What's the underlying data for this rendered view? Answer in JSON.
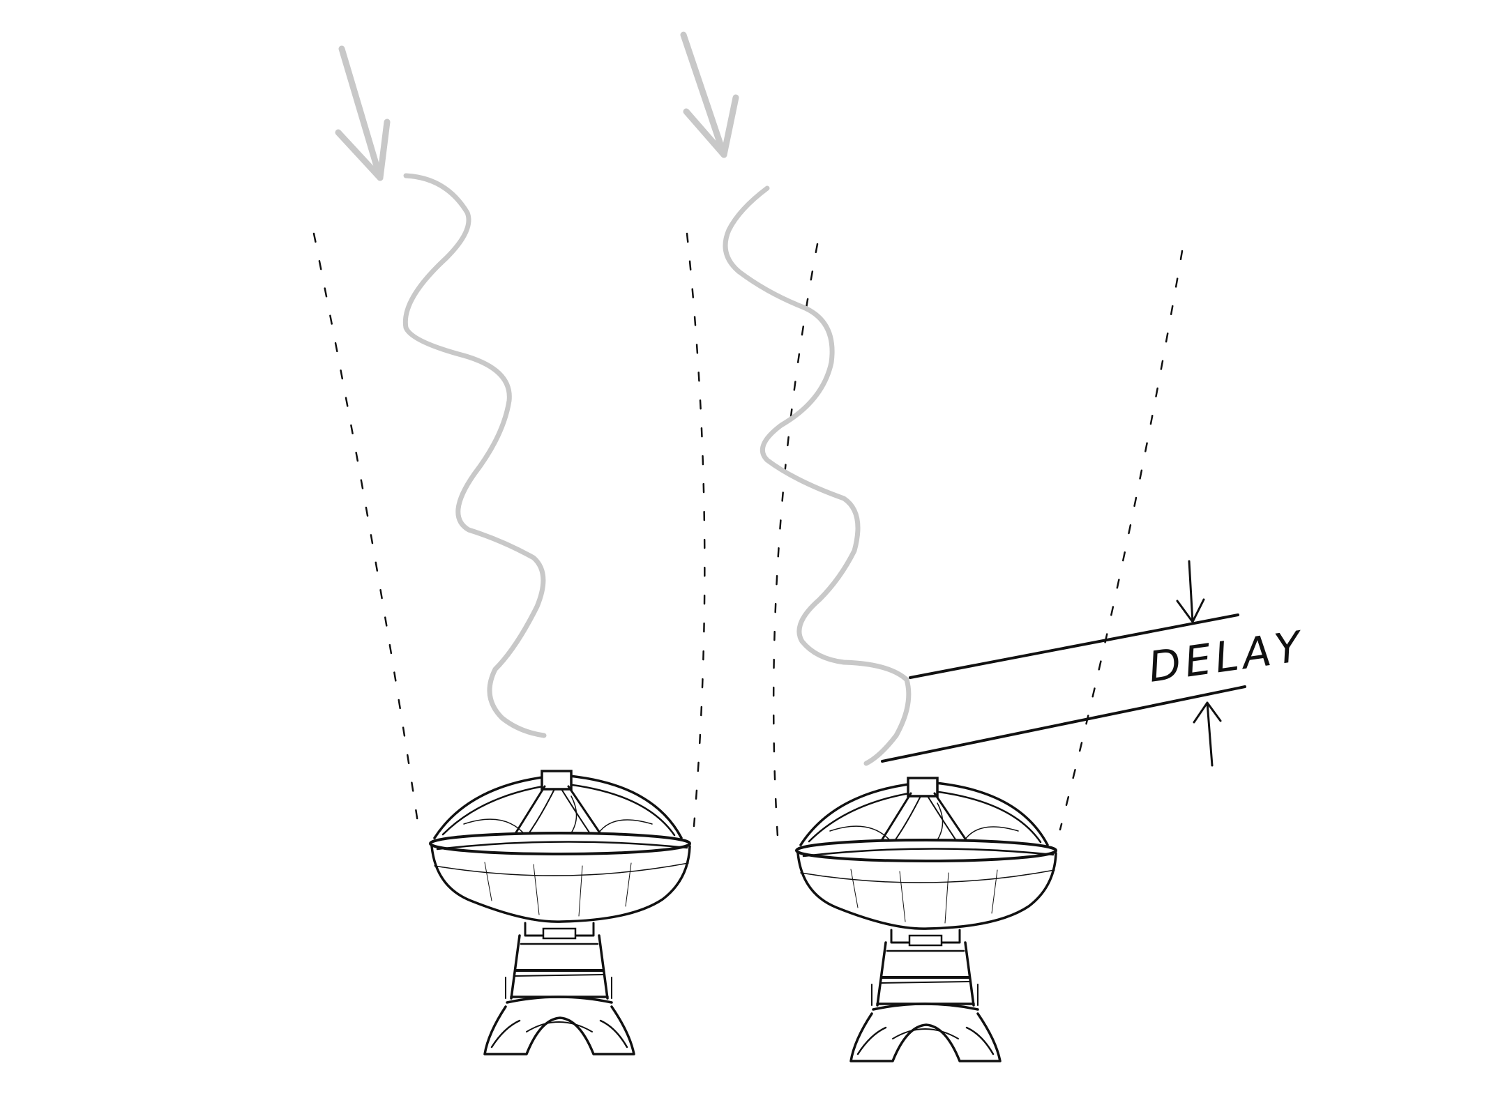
{
  "diagram": {
    "delay_label": "DELAY"
  },
  "colors": {
    "ink": "#111111",
    "wave": "#c8c8c8",
    "background": "#ffffff"
  }
}
